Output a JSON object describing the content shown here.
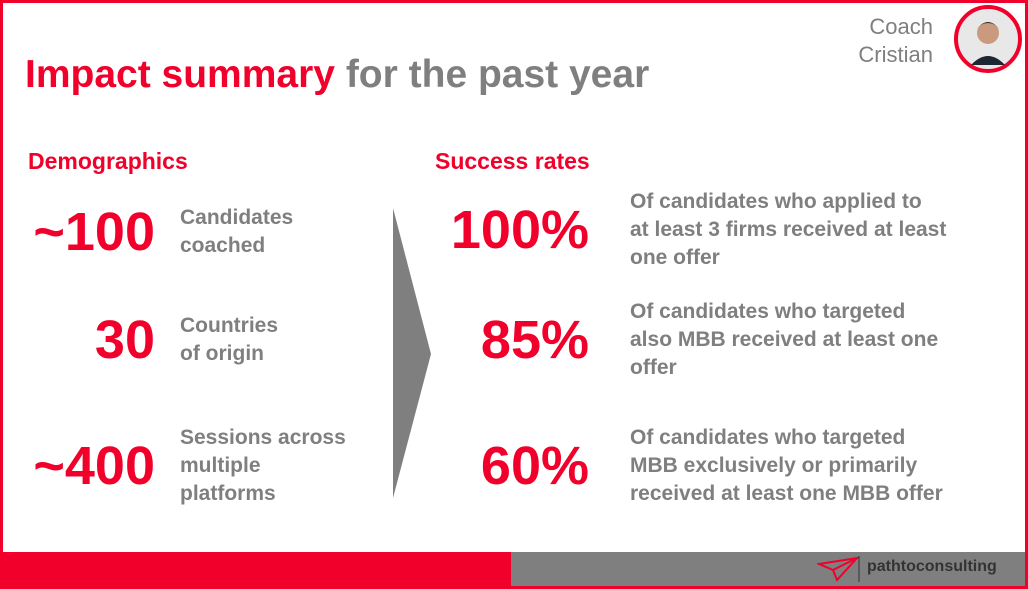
{
  "header": {
    "title_highlight": "Impact summary",
    "title_rest": "for the past year",
    "coach_lines": [
      "Coach",
      "Cristian"
    ]
  },
  "demographics": {
    "heading": "Demographics",
    "stats": [
      {
        "value": "~100",
        "label_lines": [
          "Candidates",
          "coached"
        ]
      },
      {
        "value": "30",
        "label_lines": [
          "Countries",
          "of origin"
        ]
      },
      {
        "value": "~400",
        "label_lines": [
          "Sessions across",
          "multiple",
          "platforms"
        ]
      }
    ]
  },
  "success_rates": {
    "heading": "Success rates",
    "stats": [
      {
        "value": "100%",
        "label_lines": [
          "Of candidates who applied to",
          "at least 3 firms received at least",
          "one offer"
        ]
      },
      {
        "value": "85%",
        "label_lines": [
          "Of candidates who targeted",
          "also MBB received at least one",
          "offer"
        ]
      },
      {
        "value": "60%",
        "label_lines": [
          "Of candidates who targeted",
          "MBB exclusively or primarily",
          "received at least one MBB offer"
        ]
      }
    ]
  },
  "footer": {
    "brand": "pathtoconsulting"
  }
}
